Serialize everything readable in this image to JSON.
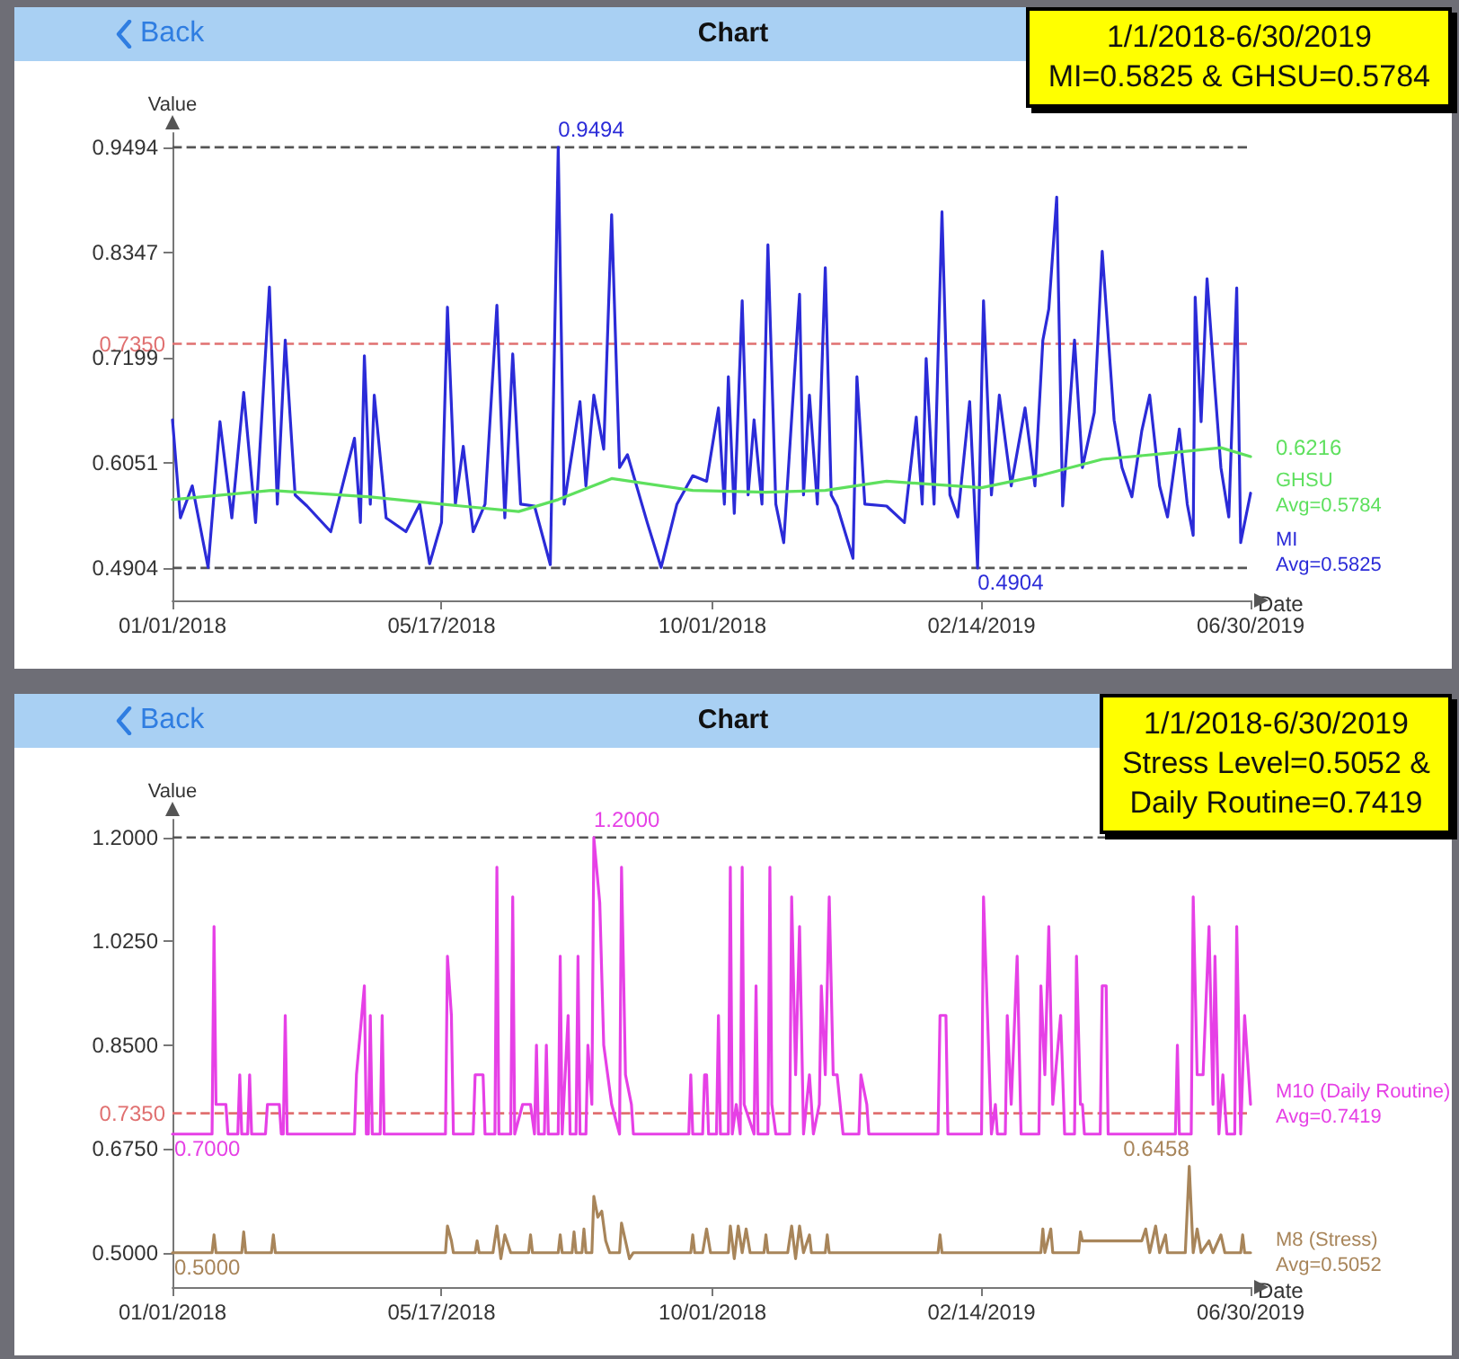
{
  "chart_data": [
    {
      "type": "line",
      "title": "Chart",
      "subtitle": "1/1/2018-6/30/2019\nMI=0.5825 & GHSU=0.5784",
      "xlabel": "Date",
      "ylabel": "Value",
      "xlim": [
        "2018-01-01",
        "2019-06-30"
      ],
      "xticks": [
        {
          "value": "2018-01-01",
          "label": "01/01/2018"
        },
        {
          "value": "2018-05-17",
          "label": "05/17/2018"
        },
        {
          "value": "2018-10-01",
          "label": "10/01/2018"
        },
        {
          "value": "2019-02-14",
          "label": "02/14/2019"
        },
        {
          "value": "2019-06-30",
          "label": "06/30/2019"
        }
      ],
      "ylim": [
        0.455,
        0.965
      ],
      "yticks": [
        0.4904,
        0.6051,
        0.7199,
        0.8347,
        0.9494
      ],
      "ref_lines": [
        {
          "axis": "y",
          "value": 0.9494,
          "label": null,
          "color": "#555555",
          "line_style": "dashed"
        },
        {
          "axis": "y",
          "value": 0.735,
          "label": "0.7350",
          "color": "#e07070",
          "line_style": "dashed"
        },
        {
          "axis": "y",
          "value": 0.4904,
          "label": null,
          "color": "#555555",
          "line_style": "dashed"
        }
      ],
      "annotations": [
        "Back",
        {
          "text": "0.9494",
          "x": "2018-07-15",
          "y": 0.9494
        },
        {
          "text": "0.4904",
          "x": "2019-02-12",
          "y": 0.4904
        },
        {
          "text": "0.6216",
          "x": "2019-06-15",
          "y": 0.6216
        },
        "Avg=0.5825",
        "Avg=0.5784"
      ],
      "series": [
        {
          "name": "MI",
          "color": "#2b2bd8",
          "x": [
            "2018-01-01",
            "2018-01-05",
            "2018-01-11",
            "2018-01-19",
            "2018-01-25",
            "2018-01-31",
            "2018-02-06",
            "2018-02-12",
            "2018-02-19",
            "2018-02-23",
            "2018-02-27",
            "2018-03-04",
            "2018-03-10",
            "2018-03-22",
            "2018-04-03",
            "2018-04-06",
            "2018-04-08",
            "2018-04-11",
            "2018-04-13",
            "2018-04-19",
            "2018-04-29",
            "2018-05-06",
            "2018-05-11",
            "2018-05-17",
            "2018-05-20",
            "2018-05-24",
            "2018-05-28",
            "2018-06-02",
            "2018-06-08",
            "2018-06-14",
            "2018-06-18",
            "2018-06-22",
            "2018-06-26",
            "2018-07-03",
            "2018-07-11",
            "2018-07-15",
            "2018-07-18",
            "2018-07-26",
            "2018-07-29",
            "2018-08-02",
            "2018-08-07",
            "2018-08-11",
            "2018-08-15",
            "2018-08-19",
            "2018-08-29",
            "2018-09-05",
            "2018-09-13",
            "2018-09-21",
            "2018-09-28",
            "2018-10-04",
            "2018-10-07",
            "2018-10-09",
            "2018-10-12",
            "2018-10-16",
            "2018-10-19",
            "2018-10-22",
            "2018-10-26",
            "2018-10-29",
            "2018-11-02",
            "2018-11-06",
            "2018-11-14",
            "2018-11-16",
            "2018-11-19",
            "2018-11-23",
            "2018-11-27",
            "2018-11-30",
            "2018-12-03",
            "2018-12-11",
            "2018-12-13",
            "2018-12-17",
            "2018-12-28",
            "2019-01-06",
            "2019-01-12",
            "2019-01-15",
            "2019-01-17",
            "2019-01-21",
            "2019-01-25",
            "2019-01-29",
            "2019-02-02",
            "2019-02-08",
            "2019-02-12",
            "2019-02-15",
            "2019-02-19",
            "2019-02-23",
            "2019-03-01",
            "2019-03-08",
            "2019-03-13",
            "2019-03-17",
            "2019-03-20",
            "2019-03-24",
            "2019-03-27",
            "2019-04-02",
            "2019-04-06",
            "2019-04-12",
            "2019-04-16",
            "2019-04-22",
            "2019-04-26",
            "2019-05-01",
            "2019-05-06",
            "2019-05-10",
            "2019-05-15",
            "2019-05-19",
            "2019-05-25",
            "2019-05-29",
            "2019-06-01",
            "2019-06-02",
            "2019-06-05",
            "2019-06-08",
            "2019-06-12",
            "2019-06-15",
            "2019-06-19",
            "2019-06-23",
            "2019-06-25",
            "2019-06-30"
          ],
          "values": [
            0.652,
            0.545,
            0.58,
            0.491,
            0.65,
            0.545,
            0.682,
            0.54,
            0.797,
            0.56,
            0.739,
            0.57,
            0.558,
            0.53,
            0.632,
            0.54,
            0.722,
            0.56,
            0.679,
            0.545,
            0.53,
            0.56,
            0.495,
            0.54,
            0.775,
            0.56,
            0.623,
            0.53,
            0.56,
            0.777,
            0.545,
            0.724,
            0.56,
            0.558,
            0.494,
            0.9494,
            0.56,
            0.672,
            0.58,
            0.679,
            0.62,
            0.876,
            0.6,
            0.614,
            0.54,
            0.491,
            0.56,
            0.591,
            0.585,
            0.665,
            0.56,
            0.699,
            0.55,
            0.782,
            0.57,
            0.652,
            0.56,
            0.843,
            0.56,
            0.518,
            0.789,
            0.57,
            0.679,
            0.56,
            0.818,
            0.57,
            0.558,
            0.501,
            0.699,
            0.56,
            0.558,
            0.54,
            0.655,
            0.56,
            0.719,
            0.56,
            0.879,
            0.57,
            0.546,
            0.672,
            0.4904,
            0.782,
            0.57,
            0.679,
            0.58,
            0.665,
            0.58,
            0.739,
            0.773,
            0.895,
            0.558,
            0.739,
            0.6,
            0.66,
            0.836,
            0.652,
            0.6,
            0.568,
            0.64,
            0.679,
            0.58,
            0.546,
            0.642,
            0.56,
            0.526,
            0.786,
            0.65,
            0.806,
            0.686,
            0.6,
            0.546,
            0.796,
            0.518,
            0.572
          ]
        },
        {
          "name": "GHSU",
          "color": "#5ee05e",
          "x": [
            "2018-01-01",
            "2018-02-20",
            "2018-04-11",
            "2018-05-17",
            "2018-06-25",
            "2018-07-15",
            "2018-08-11",
            "2018-09-21",
            "2018-10-28",
            "2018-11-27",
            "2018-12-28",
            "2019-02-14",
            "2019-03-17",
            "2019-04-16",
            "2019-05-16",
            "2019-06-15",
            "2019-06-30"
          ],
          "values": [
            0.565,
            0.575,
            0.568,
            0.56,
            0.552,
            0.565,
            0.588,
            0.575,
            0.573,
            0.575,
            0.585,
            0.578,
            0.592,
            0.609,
            0.615,
            0.6216,
            0.612
          ]
        }
      ]
    },
    {
      "type": "line",
      "title": "Chart",
      "subtitle": "1/1/2018-6/30/2019\nStress Level=0.5052 &\nDaily Routine=0.7419",
      "xlabel": "Date",
      "ylabel": "Value",
      "xlim": [
        "2018-01-01",
        "2019-06-30"
      ],
      "xticks": [
        {
          "value": "2018-01-01",
          "label": "01/01/2018"
        },
        {
          "value": "2018-05-17",
          "label": "05/17/2018"
        },
        {
          "value": "2018-10-01",
          "label": "10/01/2018"
        },
        {
          "value": "2019-02-14",
          "label": "02/14/2019"
        },
        {
          "value": "2019-06-30",
          "label": "06/30/2019"
        }
      ],
      "ylim": [
        0.442,
        1.23
      ],
      "yticks": [
        {
          "value": 0.5,
          "label": "0.5000"
        },
        {
          "value": 0.675,
          "label": "0.6750"
        },
        {
          "value": 0.85,
          "label": "0.8500"
        },
        {
          "value": 1.025,
          "label": "1.0250"
        },
        {
          "value": 1.2,
          "label": "1.2000"
        }
      ],
      "ref_lines": [
        {
          "axis": "y",
          "value": 1.2,
          "label": null,
          "color": "#555555",
          "line_style": "dashed"
        },
        {
          "axis": "y",
          "value": 0.735,
          "label": "0.7350",
          "color": "#e07070",
          "line_style": "dashed"
        }
      ],
      "annotations": [
        "Back",
        {
          "text": "1.2000",
          "x": "2018-08-02",
          "y": 1.2
        },
        {
          "text": "0.7000",
          "x": "2018-01-01",
          "y": 0.7
        },
        {
          "text": "0.5000",
          "x": "2018-01-01",
          "y": 0.5
        },
        {
          "text": "0.6458",
          "x": "2019-05-30",
          "y": 0.6458
        },
        "Avg=0.7419",
        "Avg=0.5052"
      ],
      "series": [
        {
          "name": "M10 (Daily Routine)",
          "color": "#e640e6",
          "x": [
            "2018-01-01",
            "2018-01-21",
            "2018-01-22",
            "2018-01-23",
            "2018-01-28",
            "2018-01-29",
            "2018-02-03",
            "2018-02-04",
            "2018-02-05",
            "2018-02-08",
            "2018-02-09",
            "2018-02-10",
            "2018-02-17",
            "2018-02-18",
            "2018-02-24",
            "2018-02-25",
            "2018-02-26",
            "2018-02-27",
            "2018-02-28",
            "2018-04-03",
            "2018-04-04",
            "2018-04-08",
            "2018-04-09",
            "2018-04-10",
            "2018-04-11",
            "2018-04-12",
            "2018-04-16",
            "2018-04-17",
            "2018-04-18",
            "2018-05-19",
            "2018-05-20",
            "2018-05-22",
            "2018-05-23",
            "2018-06-02",
            "2018-06-03",
            "2018-06-07",
            "2018-06-08",
            "2018-06-13",
            "2018-06-14",
            "2018-06-15",
            "2018-06-21",
            "2018-06-22",
            "2018-06-23",
            "2018-06-27",
            "2018-07-01",
            "2018-07-03",
            "2018-07-04",
            "2018-07-05",
            "2018-07-08",
            "2018-07-09",
            "2018-07-10",
            "2018-07-15",
            "2018-07-16",
            "2018-07-17",
            "2018-07-20",
            "2018-07-21",
            "2018-07-24",
            "2018-07-25",
            "2018-07-26",
            "2018-07-29",
            "2018-07-30",
            "2018-08-01",
            "2018-08-02",
            "2018-08-05",
            "2018-08-07",
            "2018-08-09",
            "2018-08-11",
            "2018-08-15",
            "2018-08-16",
            "2018-08-18",
            "2018-08-21",
            "2018-08-22",
            "2018-09-19",
            "2018-09-20",
            "2018-09-21",
            "2018-09-26",
            "2018-09-27",
            "2018-09-28",
            "2018-09-29",
            "2018-10-03",
            "2018-10-04",
            "2018-10-05",
            "2018-10-09",
            "2018-10-10",
            "2018-10-11",
            "2018-10-13",
            "2018-10-15",
            "2018-10-16",
            "2018-10-17",
            "2018-10-22",
            "2018-10-23",
            "2018-10-24",
            "2018-10-29",
            "2018-10-30",
            "2018-10-31",
            "2018-11-02",
            "2018-11-09",
            "2018-11-10",
            "2018-11-12",
            "2018-11-14",
            "2018-11-16",
            "2018-11-19",
            "2018-11-21",
            "2018-11-24",
            "2018-11-25",
            "2018-11-27",
            "2018-11-29",
            "2018-12-01",
            "2018-12-03",
            "2018-12-06",
            "2018-12-14",
            "2018-12-15",
            "2018-12-18",
            "2018-12-19",
            "2019-01-23",
            "2019-01-24",
            "2019-01-27",
            "2019-01-28",
            "2019-02-14",
            "2019-02-15",
            "2019-02-19",
            "2019-02-21",
            "2019-02-22",
            "2019-02-26",
            "2019-02-27",
            "2019-03-01",
            "2019-03-04",
            "2019-03-06",
            "2019-03-15",
            "2019-03-16",
            "2019-03-18",
            "2019-03-20",
            "2019-03-22",
            "2019-03-26",
            "2019-03-28",
            "2019-04-02",
            "2019-04-03",
            "2019-04-05",
            "2019-04-06",
            "2019-04-07",
            "2019-04-15",
            "2019-04-16",
            "2019-04-18",
            "2019-04-19",
            "2019-05-23",
            "2019-05-24",
            "2019-05-25",
            "2019-05-31",
            "2019-06-01",
            "2019-06-03",
            "2019-06-06",
            "2019-06-09",
            "2019-06-11",
            "2019-06-12",
            "2019-06-14",
            "2019-06-16",
            "2019-06-18",
            "2019-06-22",
            "2019-06-23",
            "2019-06-25",
            "2019-06-27",
            "2019-06-30"
          ],
          "values": [
            0.7,
            0.7,
            1.05,
            0.75,
            0.75,
            0.7,
            0.7,
            0.8,
            0.7,
            0.7,
            0.8,
            0.7,
            0.7,
            0.75,
            0.75,
            0.7,
            0.7,
            0.9,
            0.7,
            0.7,
            0.8,
            0.95,
            0.7,
            0.7,
            0.9,
            0.7,
            0.7,
            0.9,
            0.7,
            0.7,
            1.0,
            0.9,
            0.7,
            0.7,
            0.8,
            0.8,
            0.7,
            0.7,
            1.15,
            0.7,
            0.7,
            1.1,
            0.7,
            0.75,
            0.75,
            0.7,
            0.85,
            0.7,
            0.7,
            0.85,
            0.7,
            0.7,
            1.0,
            0.7,
            0.9,
            0.7,
            0.7,
            1.0,
            0.7,
            0.7,
            0.85,
            0.75,
            1.2,
            1.09,
            0.85,
            0.8,
            0.75,
            0.7,
            1.15,
            0.8,
            0.75,
            0.7,
            0.7,
            0.8,
            0.7,
            0.7,
            0.8,
            0.8,
            0.7,
            0.7,
            0.9,
            0.7,
            0.7,
            1.15,
            0.7,
            0.75,
            0.7,
            1.15,
            0.75,
            0.7,
            0.95,
            0.7,
            0.7,
            1.15,
            0.75,
            0.7,
            0.7,
            1.1,
            0.8,
            1.05,
            0.7,
            0.8,
            0.7,
            0.75,
            0.95,
            0.8,
            1.1,
            0.8,
            0.8,
            0.7,
            0.7,
            0.8,
            0.75,
            0.7,
            0.7,
            0.9,
            0.9,
            0.7,
            0.7,
            1.1,
            0.7,
            0.75,
            0.7,
            0.7,
            0.9,
            0.75,
            1.0,
            0.7,
            0.7,
            0.95,
            0.8,
            1.05,
            0.75,
            0.9,
            0.7,
            0.7,
            1.0,
            0.75,
            0.75,
            0.7,
            0.7,
            0.95,
            0.95,
            0.7,
            0.7,
            0.85,
            0.7,
            0.7,
            1.1,
            0.8,
            0.8,
            1.05,
            0.75,
            1.0,
            0.7,
            0.8,
            0.7,
            0.7,
            1.05,
            0.7,
            0.9,
            0.75
          ]
        },
        {
          "name": "M8 (Stress)",
          "color": "#a8855a",
          "x": [
            "2018-01-01",
            "2018-01-21",
            "2018-01-22",
            "2018-01-23",
            "2018-02-05",
            "2018-02-06",
            "2018-02-07",
            "2018-02-20",
            "2018-02-21",
            "2018-02-22",
            "2018-05-19",
            "2018-05-20",
            "2018-05-22",
            "2018-05-23",
            "2018-06-03",
            "2018-06-04",
            "2018-06-05",
            "2018-06-12",
            "2018-06-14",
            "2018-06-16",
            "2018-06-18",
            "2018-06-21",
            "2018-06-30",
            "2018-07-01",
            "2018-07-02",
            "2018-07-15",
            "2018-07-16",
            "2018-07-17",
            "2018-07-22",
            "2018-07-23",
            "2018-07-24",
            "2018-07-27",
            "2018-07-28",
            "2018-07-29",
            "2018-08-01",
            "2018-08-02",
            "2018-08-04",
            "2018-08-06",
            "2018-08-08",
            "2018-08-10",
            "2018-08-15",
            "2018-08-16",
            "2018-08-18",
            "2018-08-20",
            "2018-08-22",
            "2018-09-20",
            "2018-09-21",
            "2018-09-22",
            "2018-09-26",
            "2018-09-28",
            "2018-09-30",
            "2018-10-09",
            "2018-10-10",
            "2018-10-12",
            "2018-10-14",
            "2018-10-16",
            "2018-10-18",
            "2018-10-20",
            "2018-10-27",
            "2018-10-28",
            "2018-10-29",
            "2018-11-08",
            "2018-11-10",
            "2018-11-12",
            "2018-11-14",
            "2018-11-16",
            "2018-11-19",
            "2018-11-20",
            "2018-11-27",
            "2018-11-28",
            "2018-11-29",
            "2019-01-23",
            "2019-01-24",
            "2019-01-25",
            "2019-03-16",
            "2019-03-17",
            "2019-03-18",
            "2019-03-21",
            "2019-03-22",
            "2019-04-04",
            "2019-04-05",
            "2019-04-06",
            "2019-05-06",
            "2019-05-08",
            "2019-05-10",
            "2019-05-13",
            "2019-05-15",
            "2019-05-18",
            "2019-05-19",
            "2019-05-28",
            "2019-05-30",
            "2019-06-01",
            "2019-06-03",
            "2019-06-05",
            "2019-06-09",
            "2019-06-11",
            "2019-06-15",
            "2019-06-17",
            "2019-06-25",
            "2019-06-26",
            "2019-06-27",
            "2019-06-30"
          ],
          "values": [
            0.5,
            0.5,
            0.53,
            0.5,
            0.5,
            0.535,
            0.5,
            0.5,
            0.53,
            0.5,
            0.5,
            0.545,
            0.52,
            0.5,
            0.5,
            0.52,
            0.5,
            0.5,
            0.545,
            0.49,
            0.53,
            0.5,
            0.5,
            0.53,
            0.5,
            0.5,
            0.53,
            0.5,
            0.5,
            0.535,
            0.5,
            0.5,
            0.54,
            0.5,
            0.5,
            0.595,
            0.56,
            0.57,
            0.52,
            0.5,
            0.5,
            0.55,
            0.52,
            0.49,
            0.5,
            0.5,
            0.53,
            0.5,
            0.5,
            0.54,
            0.5,
            0.5,
            0.545,
            0.49,
            0.545,
            0.5,
            0.54,
            0.5,
            0.5,
            0.53,
            0.5,
            0.5,
            0.545,
            0.49,
            0.545,
            0.5,
            0.53,
            0.5,
            0.5,
            0.53,
            0.5,
            0.5,
            0.53,
            0.5,
            0.5,
            0.54,
            0.5,
            0.54,
            0.5,
            0.5,
            0.535,
            0.52,
            0.52,
            0.54,
            0.5,
            0.545,
            0.5,
            0.53,
            0.5,
            0.5,
            0.6458,
            0.5,
            0.54,
            0.5,
            0.52,
            0.5,
            0.53,
            0.5,
            0.5,
            0.53,
            0.5,
            0.5
          ]
        }
      ]
    }
  ]
}
